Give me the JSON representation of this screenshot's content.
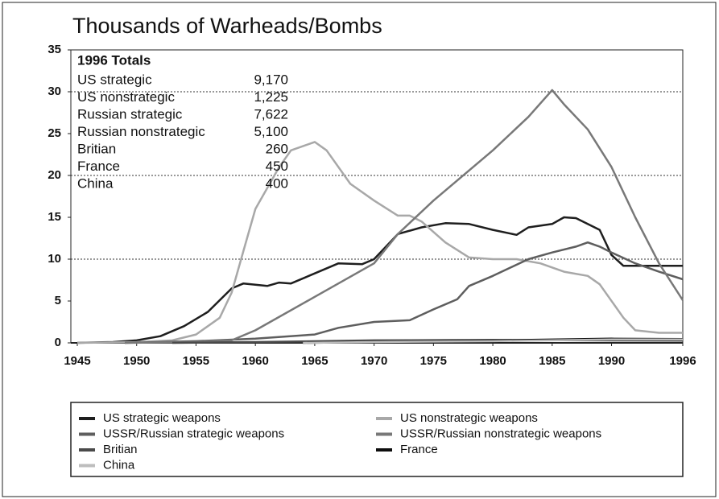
{
  "chart_data": {
    "type": "line",
    "title": "Thousands of Warheads/Bombs",
    "xlim": [
      1945,
      1996
    ],
    "ylim": [
      0,
      35
    ],
    "xticks": [
      1945,
      1950,
      1955,
      1960,
      1965,
      1970,
      1975,
      1980,
      1985,
      1990,
      1996
    ],
    "yticks": [
      0,
      5,
      10,
      15,
      20,
      25,
      30,
      35
    ],
    "grid_lines": [
      10,
      20,
      30
    ],
    "table": {
      "title": "1996 Totals",
      "rows": [
        [
          "US strategic",
          "9,170"
        ],
        [
          "US nonstrategic",
          "1,225"
        ],
        [
          "Russian strategic",
          "7,622"
        ],
        [
          "Russian nonstrategic",
          "5,100"
        ],
        [
          "Britian",
          "260"
        ],
        [
          "France",
          "450"
        ],
        [
          "China",
          "400"
        ]
      ]
    },
    "series": [
      {
        "name": "US strategic weapons",
        "color": "#1e1e1e",
        "x": [
          1945,
          1948,
          1950,
          1952,
          1954,
          1956,
          1958,
          1959,
          1961,
          1962,
          1963,
          1965,
          1967,
          1969,
          1970,
          1972,
          1974,
          1976,
          1978,
          1980,
          1982,
          1983,
          1985,
          1986,
          1987,
          1989,
          1990,
          1991,
          1993,
          1996
        ],
        "values": [
          0,
          0.1,
          0.3,
          0.8,
          2,
          3.7,
          6.5,
          7.1,
          6.8,
          7.2,
          7.1,
          8.3,
          9.5,
          9.4,
          10,
          13,
          13.8,
          14.3,
          14.2,
          13.5,
          12.9,
          13.8,
          14.2,
          15,
          14.9,
          13.5,
          10.5,
          9.2,
          9.2,
          9.2
        ]
      },
      {
        "name": "US nonstrategic weapons",
        "color": "#a8a8a8",
        "x": [
          1945,
          1950,
          1953,
          1955,
          1957,
          1958,
          1959,
          1960,
          1962,
          1963,
          1965,
          1966,
          1968,
          1970,
          1972,
          1973,
          1974,
          1976,
          1978,
          1980,
          1982,
          1984,
          1986,
          1988,
          1989,
          1991,
          1992,
          1994,
          1996
        ],
        "values": [
          0,
          0.1,
          0.3,
          1,
          3,
          6,
          11,
          16,
          21,
          23,
          24,
          23,
          19,
          17,
          15.2,
          15.2,
          14.5,
          12,
          10.2,
          10,
          10,
          9.5,
          8.5,
          8,
          7,
          3,
          1.5,
          1.2,
          1.2
        ]
      },
      {
        "name": "USSR/Russian strategic weapons",
        "color": "#5e5e5e",
        "x": [
          1949,
          1955,
          1960,
          1965,
          1967,
          1970,
          1973,
          1975,
          1977,
          1978,
          1980,
          1983,
          1985,
          1987,
          1988,
          1989,
          1990,
          1992,
          1994,
          1996
        ],
        "values": [
          0,
          0.2,
          0.5,
          1,
          1.8,
          2.5,
          2.7,
          4,
          5.2,
          6.8,
          8,
          10,
          10.8,
          11.5,
          12,
          11.5,
          10.8,
          9.5,
          8.5,
          7.6
        ]
      },
      {
        "name": "USSR/Russian nonstrategic weapons",
        "color": "#787878",
        "x": [
          1949,
          1955,
          1958,
          1960,
          1965,
          1970,
          1972,
          1975,
          1980,
          1983,
          1985,
          1986,
          1988,
          1990,
          1992,
          1994,
          1996
        ],
        "values": [
          0,
          0.1,
          0.3,
          1.5,
          5.5,
          9.5,
          13,
          17,
          23,
          27,
          30.2,
          28.5,
          25.5,
          21,
          15,
          9.5,
          5.1
        ]
      },
      {
        "name": "Britian",
        "color": "#4a4a4a",
        "x": [
          1953,
          1960,
          1970,
          1980,
          1996
        ],
        "values": [
          0,
          0.1,
          0.3,
          0.35,
          0.26
        ]
      },
      {
        "name": "France",
        "color": "#0d0d0d",
        "x": [
          1964,
          1970,
          1980,
          1990,
          1996
        ],
        "values": [
          0,
          0.1,
          0.3,
          0.5,
          0.45
        ]
      },
      {
        "name": "China",
        "color": "#bdbdbd",
        "x": [
          1964,
          1970,
          1980,
          1990,
          1996
        ],
        "values": [
          0,
          0.1,
          0.2,
          0.4,
          0.4
        ]
      }
    ]
  }
}
